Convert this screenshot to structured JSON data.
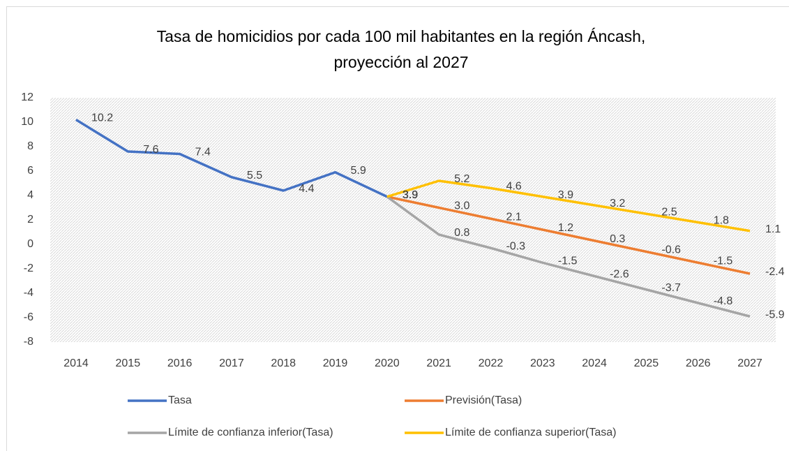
{
  "chart_data": {
    "type": "line",
    "title": "Tasa de homicidios por cada 100 mil habitantes en la región Áncash, proyección al 2027",
    "categories": [
      "2014",
      "2015",
      "2016",
      "2017",
      "2018",
      "2019",
      "2020",
      "2021",
      "2022",
      "2023",
      "2024",
      "2025",
      "2026",
      "2027"
    ],
    "series": [
      {
        "name": "Tasa",
        "color": "#4472c4",
        "values": [
          10.2,
          7.6,
          7.4,
          5.5,
          4.4,
          5.9,
          3.9,
          null,
          null,
          null,
          null,
          null,
          null,
          null
        ]
      },
      {
        "name": "Previsión(Tasa)",
        "color": "#ed7d31",
        "values": [
          null,
          null,
          null,
          null,
          null,
          null,
          3.9,
          3.0,
          2.1,
          1.2,
          0.3,
          -0.6,
          -1.5,
          -2.4
        ],
        "value_labels": [
          null,
          null,
          null,
          null,
          null,
          null,
          "3.9",
          "3.0",
          "2.1",
          "1.2",
          "0.3",
          "-0.6",
          "-1.5",
          "-2.4"
        ]
      },
      {
        "name": "Límite de confianza inferior(Tasa)",
        "color": "#a5a5a5",
        "values": [
          null,
          null,
          null,
          null,
          null,
          null,
          3.9,
          0.8,
          -0.3,
          -1.5,
          -2.6,
          -3.7,
          -4.8,
          -5.9
        ]
      },
      {
        "name": "Límite de confianza superior(Tasa)",
        "color": "#ffc000",
        "values": [
          null,
          null,
          null,
          null,
          null,
          null,
          3.9,
          5.2,
          4.6,
          3.9,
          3.2,
          2.5,
          1.8,
          1.1
        ]
      }
    ],
    "ylim": [
      -8,
      12
    ],
    "yticks": [
      -8,
      -6,
      -4,
      -2,
      0,
      2,
      4,
      6,
      8,
      10,
      12
    ],
    "legend": "bottom"
  }
}
